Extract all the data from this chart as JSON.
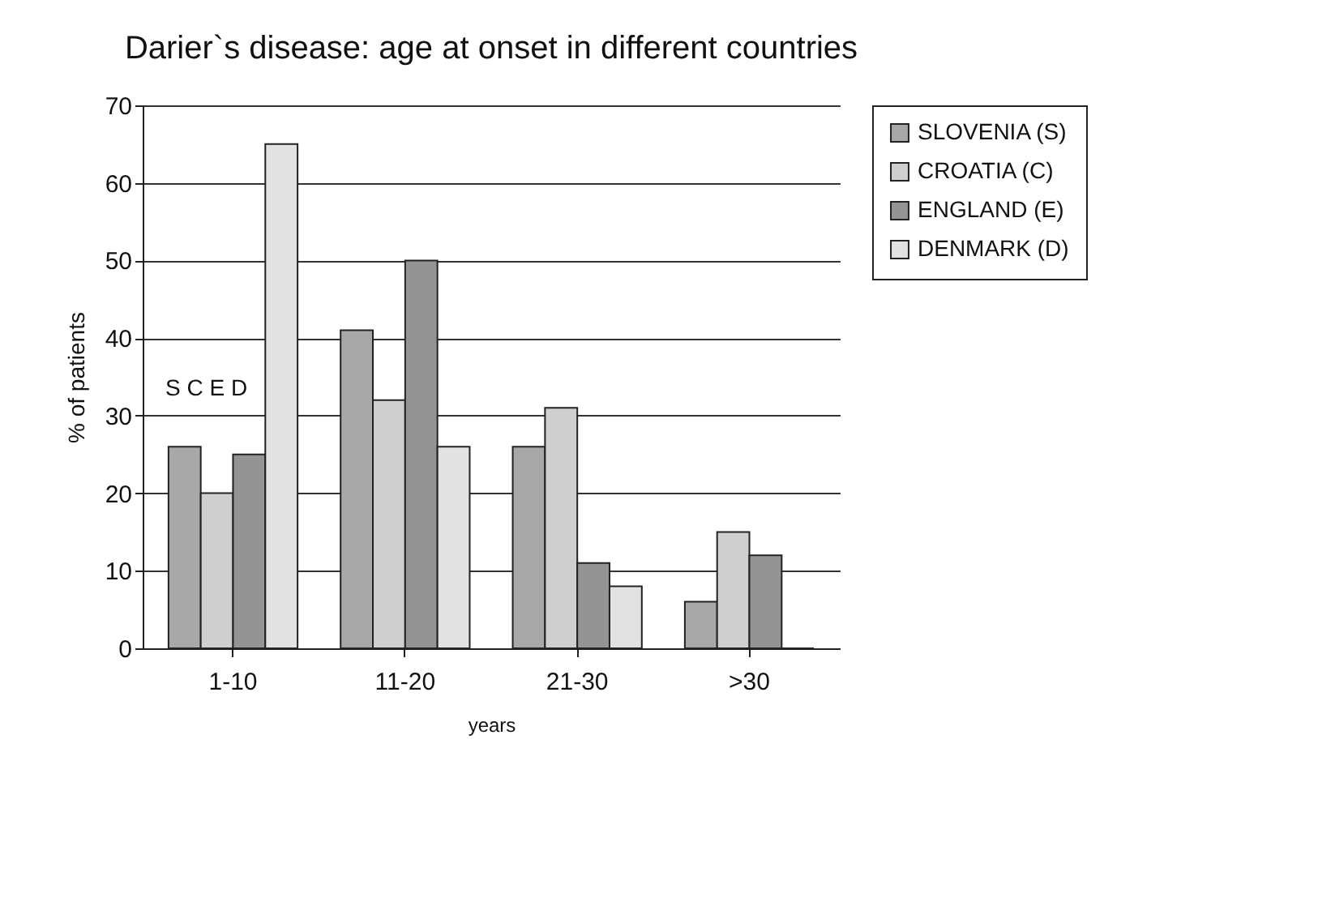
{
  "chart_data": {
    "type": "bar",
    "title": "Darier`s disease: age at onset in different countries",
    "xlabel": "years",
    "ylabel": "% of patients",
    "categories": [
      "1-10",
      "11-20",
      "21-30",
      ">30"
    ],
    "series": [
      {
        "name": "SLOVENIA (S)",
        "color": "#a8a8a8",
        "values": [
          26,
          41,
          26,
          6
        ]
      },
      {
        "name": "CROATIA (C)",
        "color": "#cfcfcf",
        "values": [
          20,
          32,
          31,
          15
        ]
      },
      {
        "name": "ENGLAND (E)",
        "color": "#949494",
        "values": [
          25,
          50,
          11,
          12
        ]
      },
      {
        "name": "DENMARK (D)",
        "color": "#e2e2e2",
        "values": [
          65,
          26,
          8,
          0
        ]
      }
    ],
    "annotations": [
      "S C E D"
    ],
    "ylim": [
      0,
      70
    ],
    "yticks": [
      0,
      10,
      20,
      30,
      40,
      50,
      60,
      70
    ],
    "grid": "y",
    "legend": "right"
  }
}
